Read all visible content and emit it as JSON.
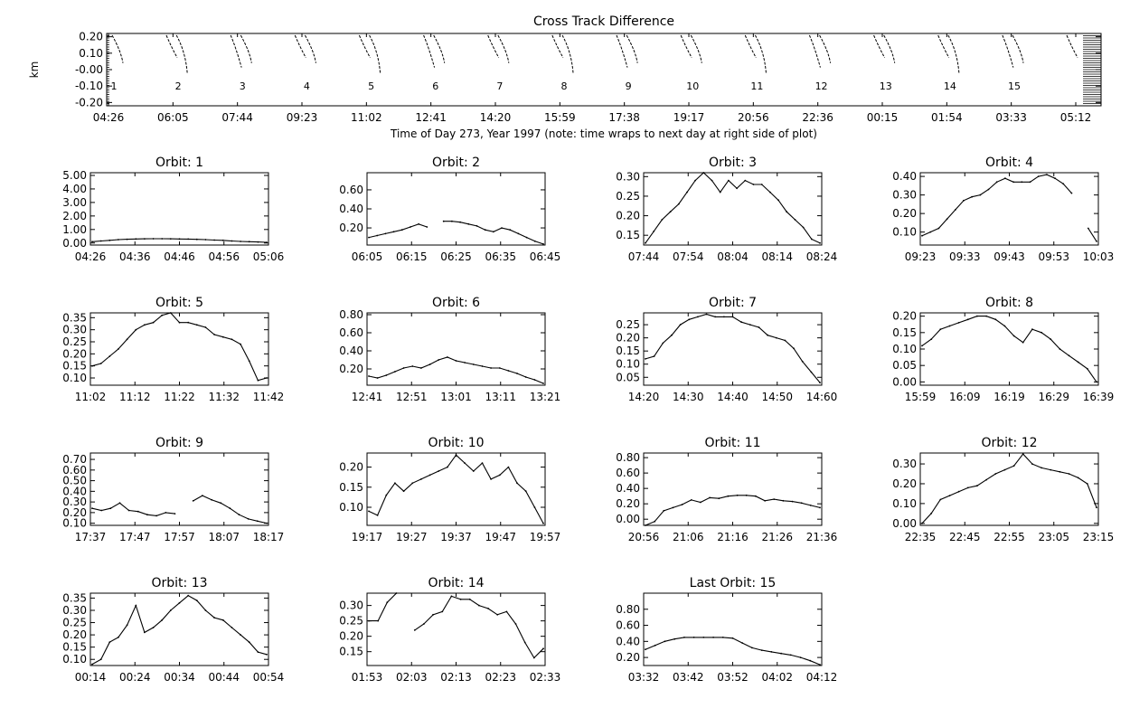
{
  "page": {
    "title": "Cross Track Difference"
  },
  "chart_data": [
    {
      "type": "line",
      "id": "overview",
      "title": "Cross Track Difference",
      "ylabel": "km",
      "xlabel": "Time of Day 273, Year 1997 (note: time wraps to next day at right side of plot)",
      "yticks": [
        "0.20",
        "0.10",
        "-0.00",
        "-0.10",
        "-0.20"
      ],
      "ylim": [
        -0.22,
        0.22
      ],
      "xticks": [
        "04:26",
        "06:05",
        "07:44",
        "09:23",
        "11:02",
        "12:41",
        "14:20",
        "15:59",
        "17:38",
        "19:17",
        "20:56",
        "22:36",
        "00:15",
        "01:54",
        "03:33",
        "05:12"
      ],
      "orbit_labels": [
        "1",
        "2",
        "3",
        "4",
        "5",
        "6",
        "7",
        "8",
        "9",
        "10",
        "11",
        "12",
        "13",
        "14",
        "15"
      ],
      "grid": false
    },
    {
      "type": "line",
      "title": "Orbit: 1",
      "ylim": [
        -0.15,
        5.2
      ],
      "yticks": [
        "5.00",
        "4.00",
        "3.00",
        "2.00",
        "1.00",
        "0.00"
      ],
      "xticks": [
        "04:26",
        "04:36",
        "04:46",
        "04:56",
        "05:06"
      ],
      "y": [
        0.1,
        0.15,
        0.2,
        0.25,
        0.28,
        0.3,
        0.31,
        0.32,
        0.32,
        0.31,
        0.3,
        0.29,
        0.27,
        0.25,
        0.22,
        0.2,
        0.15,
        0.12,
        0.1,
        0.08,
        0.05
      ]
    },
    {
      "type": "line",
      "title": "Orbit: 2",
      "ylim": [
        0.02,
        0.78
      ],
      "yticks": [
        "0.60",
        "0.40",
        "0.20"
      ],
      "xticks": [
        "06:05",
        "06:15",
        "06:25",
        "06:35",
        "06:45"
      ],
      "y": [
        0.1,
        0.12,
        0.14,
        0.16,
        0.18,
        0.21,
        0.24,
        0.21,
        null,
        0.27,
        0.27,
        0.26,
        0.24,
        0.22,
        0.18,
        0.16,
        0.2,
        0.18,
        0.14,
        0.1,
        0.06,
        0.03
      ]
    },
    {
      "type": "line",
      "title": "Orbit: 3",
      "ylim": [
        0.125,
        0.31
      ],
      "yticks": [
        "0.30",
        "0.25",
        "0.20",
        "0.15"
      ],
      "xticks": [
        "07:44",
        "07:54",
        "08:04",
        "08:14",
        "08:24"
      ],
      "y": [
        0.13,
        0.16,
        0.19,
        0.21,
        0.23,
        0.26,
        0.29,
        0.31,
        0.29,
        0.26,
        0.29,
        0.27,
        0.29,
        0.28,
        0.28,
        0.26,
        0.24,
        0.21,
        0.19,
        0.17,
        0.14,
        0.13
      ]
    },
    {
      "type": "line",
      "title": "Orbit: 4",
      "ylim": [
        0.03,
        0.42
      ],
      "yticks": [
        "0.40",
        "0.30",
        "0.20",
        "0.10"
      ],
      "xticks": [
        "09:23",
        "09:33",
        "09:43",
        "09:53",
        "10:03"
      ],
      "y": [
        0.08,
        0.1,
        0.12,
        0.17,
        0.22,
        0.27,
        0.29,
        0.3,
        0.33,
        0.37,
        0.39,
        0.37,
        0.37,
        0.37,
        0.4,
        0.41,
        0.39,
        0.36,
        0.31,
        null,
        0.12,
        0.05
      ]
    },
    {
      "type": "line",
      "title": "Orbit: 5",
      "ylim": [
        0.07,
        0.37
      ],
      "yticks": [
        "0.35",
        "0.30",
        "0.25",
        "0.20",
        "0.15",
        "0.10"
      ],
      "xticks": [
        "11:02",
        "11:12",
        "11:22",
        "11:32",
        "11:42"
      ],
      "y": [
        0.15,
        0.16,
        0.19,
        0.22,
        0.26,
        0.3,
        0.32,
        0.33,
        0.36,
        0.37,
        0.33,
        0.33,
        0.32,
        0.31,
        0.28,
        0.27,
        0.26,
        0.24,
        0.17,
        0.09,
        0.1
      ]
    },
    {
      "type": "line",
      "title": "Orbit: 6",
      "ylim": [
        0.02,
        0.82
      ],
      "yticks": [
        "0.80",
        "0.60",
        "0.40",
        "0.20"
      ],
      "xticks": [
        "12:41",
        "12:51",
        "13:01",
        "13:11",
        "13:21"
      ],
      "y": [
        0.12,
        0.1,
        0.13,
        0.17,
        0.21,
        0.23,
        0.21,
        0.25,
        0.3,
        0.33,
        0.29,
        0.27,
        0.25,
        0.23,
        0.21,
        0.21,
        0.18,
        0.15,
        0.11,
        0.08,
        0.04
      ]
    },
    {
      "type": "line",
      "title": "Orbit: 7",
      "ylim": [
        0.02,
        0.295
      ],
      "yticks": [
        "0.25",
        "0.20",
        "0.15",
        "0.10",
        "0.05"
      ],
      "xticks": [
        "14:20",
        "14:30",
        "14:40",
        "14:50",
        "14:60"
      ],
      "y": [
        0.12,
        0.13,
        0.18,
        0.21,
        0.25,
        0.27,
        0.28,
        0.29,
        0.28,
        0.28,
        0.28,
        0.26,
        0.25,
        0.24,
        0.21,
        0.2,
        0.19,
        0.16,
        0.11,
        0.07,
        0.03
      ]
    },
    {
      "type": "line",
      "title": "Orbit: 8",
      "ylim": [
        -0.01,
        0.21
      ],
      "yticks": [
        "0.20",
        "0.15",
        "0.10",
        "0.05",
        "0.00"
      ],
      "xticks": [
        "15:59",
        "16:09",
        "16:19",
        "16:29",
        "16:39"
      ],
      "y": [
        0.11,
        0.13,
        0.16,
        0.17,
        0.18,
        0.19,
        0.2,
        0.2,
        0.19,
        0.17,
        0.14,
        0.12,
        0.16,
        0.15,
        0.13,
        0.1,
        0.08,
        0.06,
        0.04,
        0.0
      ]
    },
    {
      "type": "line",
      "title": "Orbit: 9",
      "ylim": [
        0.08,
        0.76
      ],
      "yticks": [
        "0.70",
        "0.60",
        "0.50",
        "0.40",
        "0.30",
        "0.20",
        "0.10"
      ],
      "xticks": [
        "17:37",
        "17:47",
        "17:57",
        "18:07",
        "18:17"
      ],
      "y": [
        0.24,
        0.22,
        0.24,
        0.29,
        0.22,
        0.21,
        0.18,
        0.17,
        0.2,
        0.19,
        null,
        0.31,
        0.36,
        0.32,
        0.29,
        0.24,
        0.18,
        0.14,
        0.12,
        0.1
      ]
    },
    {
      "type": "line",
      "title": "Orbit: 10",
      "ylim": [
        0.055,
        0.235
      ],
      "yticks": [
        "0.20",
        "0.15",
        "0.10"
      ],
      "xticks": [
        "19:17",
        "19:27",
        "19:37",
        "19:47",
        "19:57"
      ],
      "y": [
        0.09,
        0.08,
        0.13,
        0.16,
        0.14,
        0.16,
        0.17,
        0.18,
        0.19,
        0.2,
        0.23,
        0.21,
        0.19,
        0.21,
        0.17,
        0.18,
        0.2,
        0.16,
        0.14,
        0.1,
        0.06
      ]
    },
    {
      "type": "line",
      "title": "Orbit: 11",
      "ylim": [
        -0.08,
        0.86
      ],
      "yticks": [
        "0.80",
        "0.60",
        "0.40",
        "0.20",
        "0.00"
      ],
      "xticks": [
        "20:56",
        "21:06",
        "21:16",
        "21:26",
        "21:36"
      ],
      "y": [
        -0.08,
        -0.03,
        0.11,
        0.15,
        0.19,
        0.25,
        0.22,
        0.28,
        0.27,
        0.3,
        0.31,
        0.31,
        0.3,
        0.24,
        0.26,
        0.24,
        0.23,
        0.21,
        0.18,
        0.15
      ]
    },
    {
      "type": "line",
      "title": "Orbit: 12",
      "ylim": [
        -0.01,
        0.355
      ],
      "yticks": [
        "0.30",
        "0.20",
        "0.10",
        "0.00"
      ],
      "xticks": [
        "22:35",
        "22:45",
        "22:55",
        "23:05",
        "23:15"
      ],
      "y": [
        0.0,
        0.05,
        0.12,
        0.14,
        0.16,
        0.18,
        0.19,
        0.22,
        0.25,
        0.27,
        0.29,
        0.35,
        0.3,
        0.28,
        0.27,
        0.26,
        0.25,
        0.23,
        0.2,
        0.08
      ]
    },
    {
      "type": "line",
      "title": "Orbit: 13",
      "ylim": [
        0.075,
        0.37
      ],
      "yticks": [
        "0.35",
        "0.30",
        "0.25",
        "0.20",
        "0.15",
        "0.10"
      ],
      "xticks": [
        "00:14",
        "00:24",
        "00:34",
        "00:44",
        "00:54"
      ],
      "y": [
        0.08,
        0.1,
        0.17,
        0.19,
        0.24,
        0.32,
        0.21,
        0.23,
        0.26,
        0.3,
        0.33,
        0.36,
        0.34,
        0.3,
        0.27,
        0.26,
        0.23,
        0.2,
        0.17,
        0.13,
        0.12
      ]
    },
    {
      "type": "line",
      "title": "Orbit: 14",
      "ylim": [
        0.105,
        0.34
      ],
      "yticks": [
        "0.30",
        "0.25",
        "0.20",
        "0.15"
      ],
      "xticks": [
        "01:53",
        "02:03",
        "02:13",
        "02:23",
        "02:33"
      ],
      "y": [
        0.25,
        0.25,
        0.31,
        0.35,
        null,
        0.22,
        0.24,
        0.27,
        0.28,
        0.33,
        0.32,
        0.32,
        0.3,
        0.29,
        0.27,
        0.28,
        0.24,
        0.18,
        0.13,
        0.16
      ]
    },
    {
      "type": "line",
      "title": "Last Orbit: 15",
      "ylim": [
        0.1,
        1.0
      ],
      "yticks": [
        "0.80",
        "0.60",
        "0.40",
        "0.20"
      ],
      "xticks": [
        "03:32",
        "03:42",
        "03:52",
        "04:02",
        "04:12"
      ],
      "y": [
        0.3,
        0.35,
        0.4,
        0.43,
        0.45,
        0.45,
        0.45,
        0.45,
        0.45,
        0.44,
        0.38,
        0.32,
        0.29,
        0.27,
        0.25,
        0.23,
        0.2,
        0.16,
        0.11
      ]
    }
  ]
}
